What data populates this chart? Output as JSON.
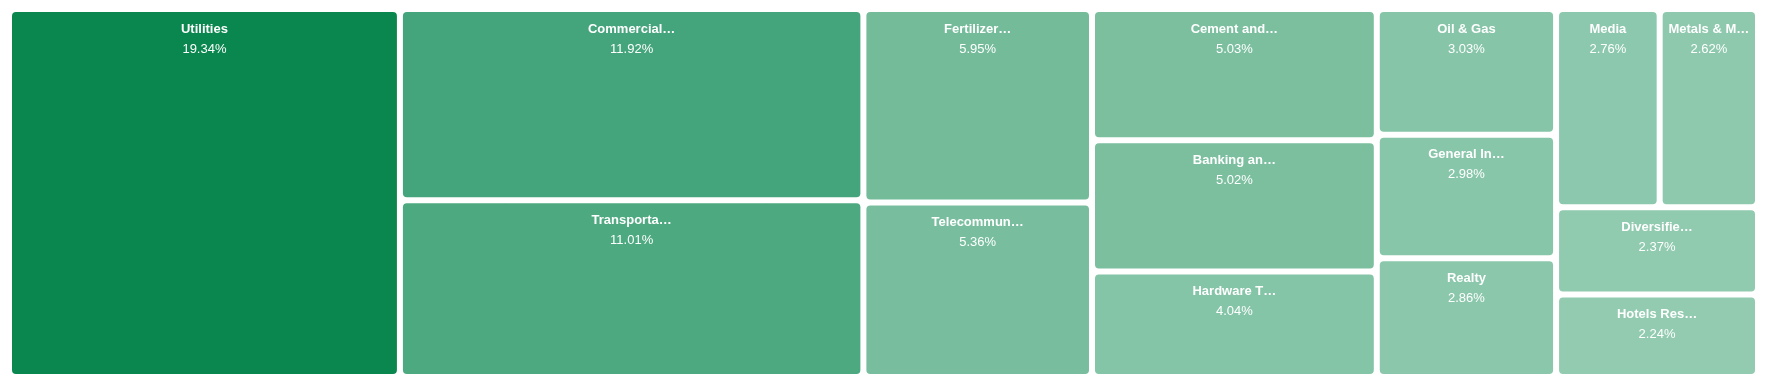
{
  "chart_data": {
    "type": "other",
    "categories": [
      "Utilities",
      "Commercial…",
      "Transporta…",
      "Fertilizer…",
      "Telecommun…",
      "Cement and…",
      "Banking an…",
      "Hardware T…",
      "Oil & Gas",
      "General In…",
      "Realty",
      "Media",
      "Metals & M…",
      "Diversifie…",
      "Hotels Res…"
    ],
    "values": [
      19.34,
      11.92,
      11.01,
      5.95,
      5.36,
      5.03,
      5.02,
      4.04,
      3.03,
      2.98,
      2.86,
      2.76,
      2.62,
      2.37,
      2.24
    ],
    "value_labels": [
      "19.34%",
      "11.92%",
      "11.01%",
      "5.95%",
      "5.36%",
      "5.03%",
      "5.02%",
      "4.04%",
      "3.03%",
      "2.98%",
      "2.86%",
      "2.76%",
      "2.62%",
      "2.37%",
      "2.24%"
    ],
    "colors": [
      "#0a874e",
      "#44a57c",
      "#4daa80",
      "#74bb9a",
      "#78be9e",
      "#7bbf9f",
      "#7bbf9f",
      "#84c4a7",
      "#86c5a8",
      "#88c6aa",
      "#8ac7ab",
      "#8cc8ad",
      "#8ec9ae",
      "#90caaf",
      "#92cbb0"
    ]
  }
}
